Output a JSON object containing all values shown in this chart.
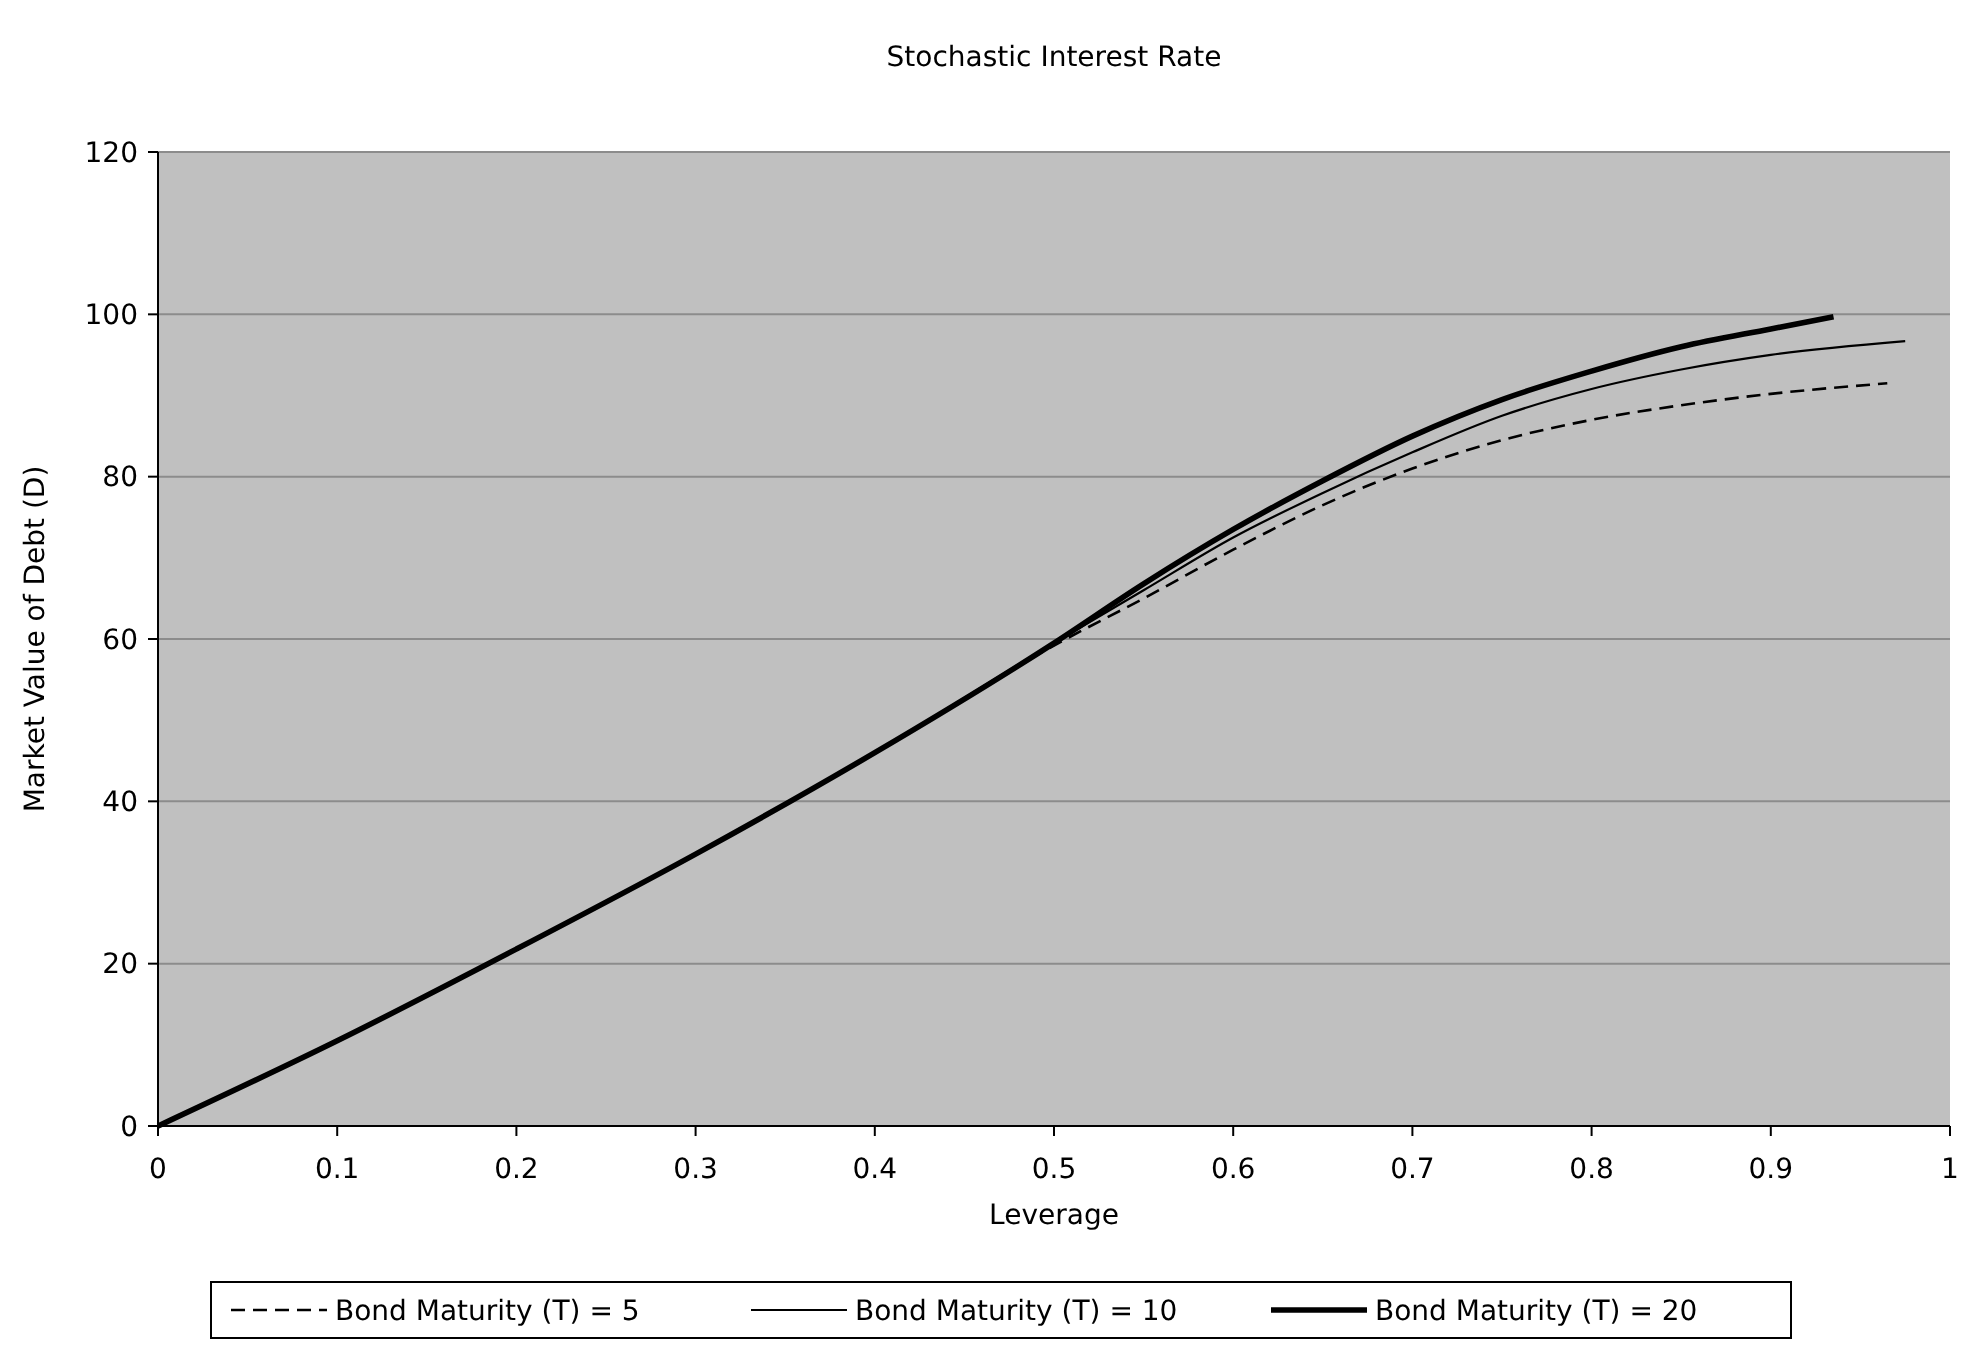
{
  "chart_data": {
    "type": "line",
    "title": "Stochastic Interest Rate",
    "xlabel": "Leverage",
    "ylabel": "Market Value of Debt (D)",
    "xlim": [
      0,
      1
    ],
    "xticks": [
      0,
      0.1,
      0.2,
      0.3,
      0.4,
      0.5,
      0.6,
      0.7,
      0.8,
      0.9,
      1
    ],
    "ylim": [
      0,
      120
    ],
    "yticks": [
      0,
      20,
      40,
      60,
      80,
      100,
      120
    ],
    "grid": "y",
    "legend": "bottom",
    "marker": "none",
    "series": [
      {
        "name": "Bond Maturity (T) = 5",
        "color": "#000000",
        "line_style": "dashed",
        "x": [
          0,
          0.1,
          0.2,
          0.3,
          0.4,
          0.5,
          0.55,
          0.6,
          0.65,
          0.7,
          0.75,
          0.8,
          0.85,
          0.9,
          0.965
        ],
        "values": [
          0,
          10.5,
          21.8,
          33.5,
          46,
          59.2,
          65,
          71,
          76.5,
          81,
          84.5,
          87,
          88.8,
          90.2,
          91.5
        ]
      },
      {
        "name": "Bond Maturity (T) = 10",
        "color": "#000000",
        "line_style": "solid",
        "x": [
          0,
          0.1,
          0.2,
          0.3,
          0.4,
          0.5,
          0.55,
          0.6,
          0.65,
          0.7,
          0.75,
          0.8,
          0.85,
          0.9,
          0.975
        ],
        "values": [
          0,
          10.5,
          21.8,
          33.5,
          46,
          59.5,
          66,
          72.5,
          78,
          83,
          87.5,
          90.8,
          93.2,
          95,
          96.7
        ]
      },
      {
        "name": "Bond Maturity (T) = 20",
        "color": "#000000",
        "line_style": "solid",
        "x": [
          0,
          0.1,
          0.2,
          0.3,
          0.4,
          0.5,
          0.55,
          0.6,
          0.65,
          0.7,
          0.75,
          0.8,
          0.85,
          0.9,
          0.935
        ],
        "values": [
          0,
          10.5,
          21.8,
          33.5,
          46,
          59.5,
          66.8,
          73.5,
          79.5,
          85,
          89.5,
          93,
          96,
          98.2,
          99.7
        ]
      }
    ]
  }
}
